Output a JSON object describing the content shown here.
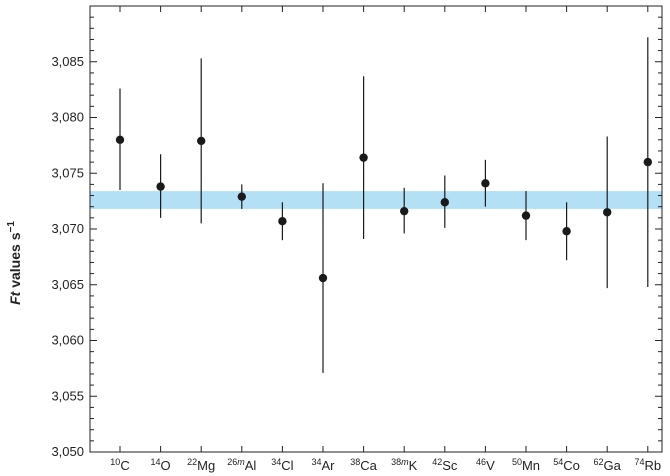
{
  "chart_data": {
    "type": "scatter",
    "title": "",
    "xlabel": "",
    "ylabel": "Ft values s⁻¹",
    "ylabel_parts": {
      "italic": "Ft",
      "rest": " values s",
      "sup": "−1"
    },
    "ylim": [
      3050,
      3090
    ],
    "yticks": [
      3050,
      3055,
      3060,
      3065,
      3070,
      3075,
      3080,
      3085
    ],
    "ytick_labels": [
      "3,050",
      "3,055",
      "3,060",
      "3,065",
      "3,070",
      "3,075",
      "3,080",
      "3,085"
    ],
    "band": {
      "low": 3071.8,
      "high": 3073.4,
      "color": "#b3e0f5"
    },
    "grid": false,
    "marker_color": "#1a1a1a",
    "categories": [
      {
        "mass": "10",
        "sym": "C",
        "label": "10C"
      },
      {
        "mass": "14",
        "sym": "O",
        "label": "14O"
      },
      {
        "mass": "22",
        "sym": "Mg",
        "label": "22Mg"
      },
      {
        "mass": "26m",
        "sym": "Al",
        "label": "26mAl"
      },
      {
        "mass": "34",
        "sym": "Cl",
        "label": "34Cl"
      },
      {
        "mass": "34",
        "sym": "Ar",
        "label": "34Ar"
      },
      {
        "mass": "38",
        "sym": "Ca",
        "label": "38Ca"
      },
      {
        "mass": "38m",
        "sym": "K",
        "label": "38mK"
      },
      {
        "mass": "42",
        "sym": "Sc",
        "label": "42Sc"
      },
      {
        "mass": "46",
        "sym": "V",
        "label": "46V"
      },
      {
        "mass": "50",
        "sym": "Mn",
        "label": "50Mn"
      },
      {
        "mass": "54",
        "sym": "Co",
        "label": "54Co"
      },
      {
        "mass": "62",
        "sym": "Ga",
        "label": "62Ga"
      },
      {
        "mass": "74",
        "sym": "Rb",
        "label": "74Rb"
      }
    ],
    "series": [
      {
        "values": [
          3078.0,
          3073.8,
          3077.9,
          3072.9,
          3070.7,
          3065.6,
          3076.4,
          3071.6,
          3072.4,
          3074.1,
          3071.2,
          3069.8,
          3071.5,
          3076.0
        ],
        "err_low": [
          3073.5,
          3071.0,
          3070.5,
          3071.8,
          3069.0,
          3057.1,
          3069.1,
          3069.6,
          3070.1,
          3072.0,
          3069.0,
          3067.2,
          3064.7,
          3064.8
        ],
        "err_high": [
          3082.6,
          3076.7,
          3085.3,
          3074.0,
          3072.4,
          3074.1,
          3083.7,
          3073.7,
          3074.8,
          3076.2,
          3073.4,
          3072.4,
          3078.3,
          3087.2
        ]
      }
    ]
  }
}
